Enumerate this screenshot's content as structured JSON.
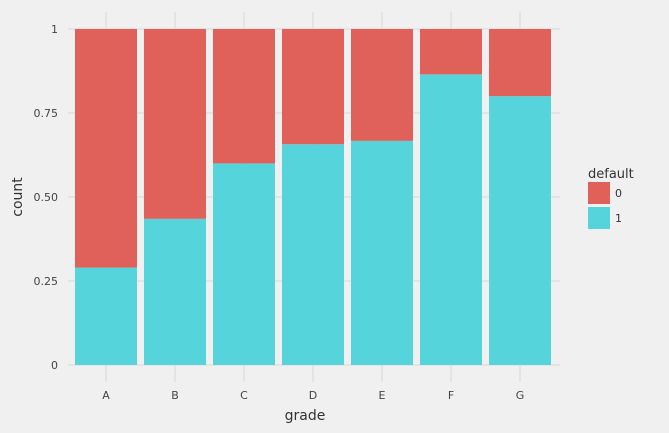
{
  "chart_data": {
    "type": "bar",
    "stacked": true,
    "normalized": true,
    "categories": [
      "A",
      "B",
      "C",
      "D",
      "E",
      "F",
      "G"
    ],
    "series": [
      {
        "name": "0",
        "color": "#e0605a",
        "values": [
          0.71,
          0.565,
          0.4,
          0.343,
          0.333,
          0.135,
          0.2
        ]
      },
      {
        "name": "1",
        "color": "#56d4dc",
        "values": [
          0.29,
          0.435,
          0.6,
          0.657,
          0.667,
          0.865,
          0.8
        ]
      }
    ],
    "xlabel": "grade",
    "ylabel": "count",
    "ylim": [
      0,
      1
    ],
    "yticks": [
      "0",
      "0.25",
      "0.50",
      "0.75",
      "1"
    ],
    "ytick_values": [
      0,
      0.25,
      0.5,
      0.75,
      1
    ],
    "legend": {
      "title": "default",
      "placement": "right"
    },
    "grid": true
  }
}
